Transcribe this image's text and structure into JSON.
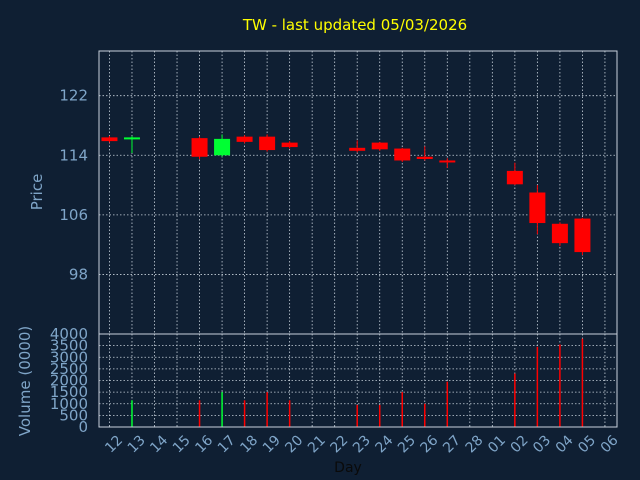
{
  "chart_data": {
    "type": "candlestick",
    "title": "TW - last updated 05/03/2026",
    "xlabel": "Day",
    "price_panel": {
      "ylabel": "Price",
      "ylim": [
        90,
        128
      ],
      "yticks": [
        98,
        106,
        114,
        122
      ],
      "grid": true
    },
    "volume_panel": {
      "ylabel": "Volume (0000)",
      "ylim": [
        0,
        4000
      ],
      "yticks": [
        0,
        500,
        1000,
        1500,
        2000,
        2500,
        3000,
        3500,
        4000
      ],
      "grid": true
    },
    "x_tick_labels": [
      "12",
      "13",
      "14",
      "15",
      "16",
      "17",
      "18",
      "19",
      "20",
      "21",
      "22",
      "23",
      "24",
      "25",
      "26",
      "27",
      "28",
      "01",
      "02",
      "03",
      "04",
      "05",
      "06"
    ],
    "candles": [
      {
        "day": "12",
        "open": 116.4,
        "high": 116.6,
        "low": 115.7,
        "close": 115.9,
        "volume": 0
      },
      {
        "day": "13",
        "open": 116.3,
        "high": 116.6,
        "low": 114.3,
        "close": 116.4,
        "volume": 1150
      },
      {
        "day": "16",
        "open": 116.3,
        "high": 116.5,
        "low": 113.5,
        "close": 113.8,
        "volume": 1150
      },
      {
        "day": "17",
        "open": 114.0,
        "high": 116.8,
        "low": 113.8,
        "close": 116.2,
        "volume": 1500
      },
      {
        "day": "18",
        "open": 116.5,
        "high": 116.7,
        "low": 115.6,
        "close": 115.8,
        "volume": 1150
      },
      {
        "day": "19",
        "open": 116.5,
        "high": 116.8,
        "low": 114.5,
        "close": 114.7,
        "volume": 1500
      },
      {
        "day": "20",
        "open": 115.7,
        "high": 115.9,
        "low": 114.9,
        "close": 115.1,
        "volume": 1150
      },
      {
        "day": "23",
        "open": 115.0,
        "high": 116.0,
        "low": 114.4,
        "close": 114.6,
        "volume": 950
      },
      {
        "day": "24",
        "open": 115.7,
        "high": 115.8,
        "low": 114.6,
        "close": 114.8,
        "volume": 950
      },
      {
        "day": "25",
        "open": 114.9,
        "high": 115.0,
        "low": 113.1,
        "close": 113.3,
        "volume": 1500
      },
      {
        "day": "26",
        "open": 113.8,
        "high": 115.2,
        "low": 113.3,
        "close": 113.5,
        "volume": 1000
      },
      {
        "day": "27",
        "open": 113.3,
        "high": 113.6,
        "low": 112.3,
        "close": 113.1,
        "volume": 1950
      },
      {
        "day": "02",
        "open": 111.9,
        "high": 113.0,
        "low": 110.0,
        "close": 110.1,
        "volume": 2300
      },
      {
        "day": "03",
        "open": 109.0,
        "high": 110.0,
        "low": 103.4,
        "close": 104.9,
        "volume": 3450
      },
      {
        "day": "04",
        "open": 104.8,
        "high": 105.0,
        "low": 101.8,
        "close": 102.2,
        "volume": 3550
      },
      {
        "day": "05",
        "open": 105.5,
        "high": 105.6,
        "low": 100.6,
        "close": 101.0,
        "volume": 3800
      }
    ],
    "colors": {
      "background": "#0f1f33",
      "up": "#00ff33",
      "down": "#ff0000",
      "title": "#ffff00",
      "axis_text": "#7fa5c8",
      "grid": "#c8d2dc"
    }
  }
}
